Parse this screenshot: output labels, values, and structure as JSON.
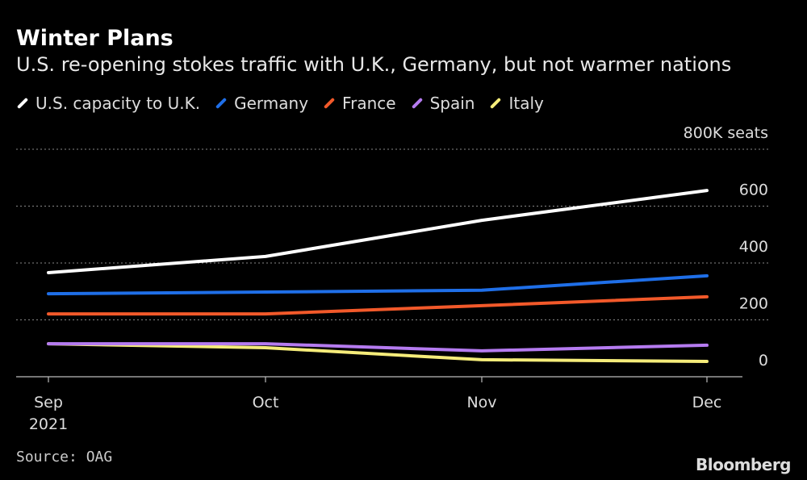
{
  "chart_data": {
    "type": "line",
    "title": "Winter Plans",
    "subtitle": "U.S. re-opening stokes traffic with U.K., Germany, but not warmer nations",
    "categories": [
      "Sep",
      "Oct",
      "Nov",
      "Dec"
    ],
    "x_tick_labels": [
      "Sep",
      "Oct",
      "Nov",
      "Dec"
    ],
    "x_year_label": "2021",
    "ylabel": "800K seats",
    "y_ticks": [
      0,
      200,
      400,
      600,
      800
    ],
    "y_tick_labels": [
      "0",
      "200",
      "400",
      "600",
      "800K seats"
    ],
    "ylim": [
      0,
      800
    ],
    "grid": true,
    "legend_position": "top-left",
    "series": [
      {
        "name": "U.S. capacity to U.K.",
        "color": "#ffffff",
        "values": [
          366,
          423,
          550,
          655
        ]
      },
      {
        "name": "Germany",
        "color": "#1f6fe8",
        "values": [
          292,
          298,
          304,
          355
        ]
      },
      {
        "name": "France",
        "color": "#f2592a",
        "values": [
          221,
          221,
          250,
          281
        ]
      },
      {
        "name": "Spain",
        "color": "#b57bf0",
        "values": [
          116,
          116,
          91,
          111
        ]
      },
      {
        "name": "Italy",
        "color": "#f5ec7a",
        "values": [
          116,
          102,
          60,
          54
        ]
      }
    ]
  },
  "source": "Source: OAG",
  "brand": "Bloomberg"
}
